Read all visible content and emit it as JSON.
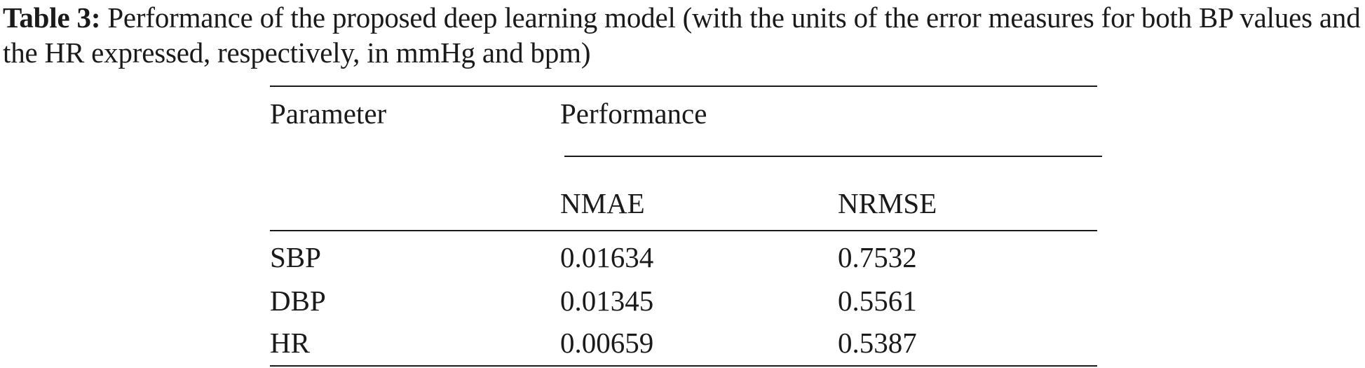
{
  "caption": {
    "label": "Table 3:",
    "text": " Performance of the proposed deep learning model (with the units of the error measures for both BP values and the HR expressed, respectively, in mmHg and bpm)"
  },
  "table": {
    "header": {
      "parameter": "Parameter",
      "performance": "Performance",
      "columns": [
        "NMAE",
        "NRMSE"
      ]
    },
    "rows": [
      {
        "parameter": "SBP",
        "nmae": "0.01634",
        "nrmse": "0.7532"
      },
      {
        "parameter": "DBP",
        "nmae": "0.01345",
        "nrmse": "0.5561"
      },
      {
        "parameter": "HR",
        "nmae": "0.00659",
        "nrmse": "0.5387"
      }
    ]
  }
}
